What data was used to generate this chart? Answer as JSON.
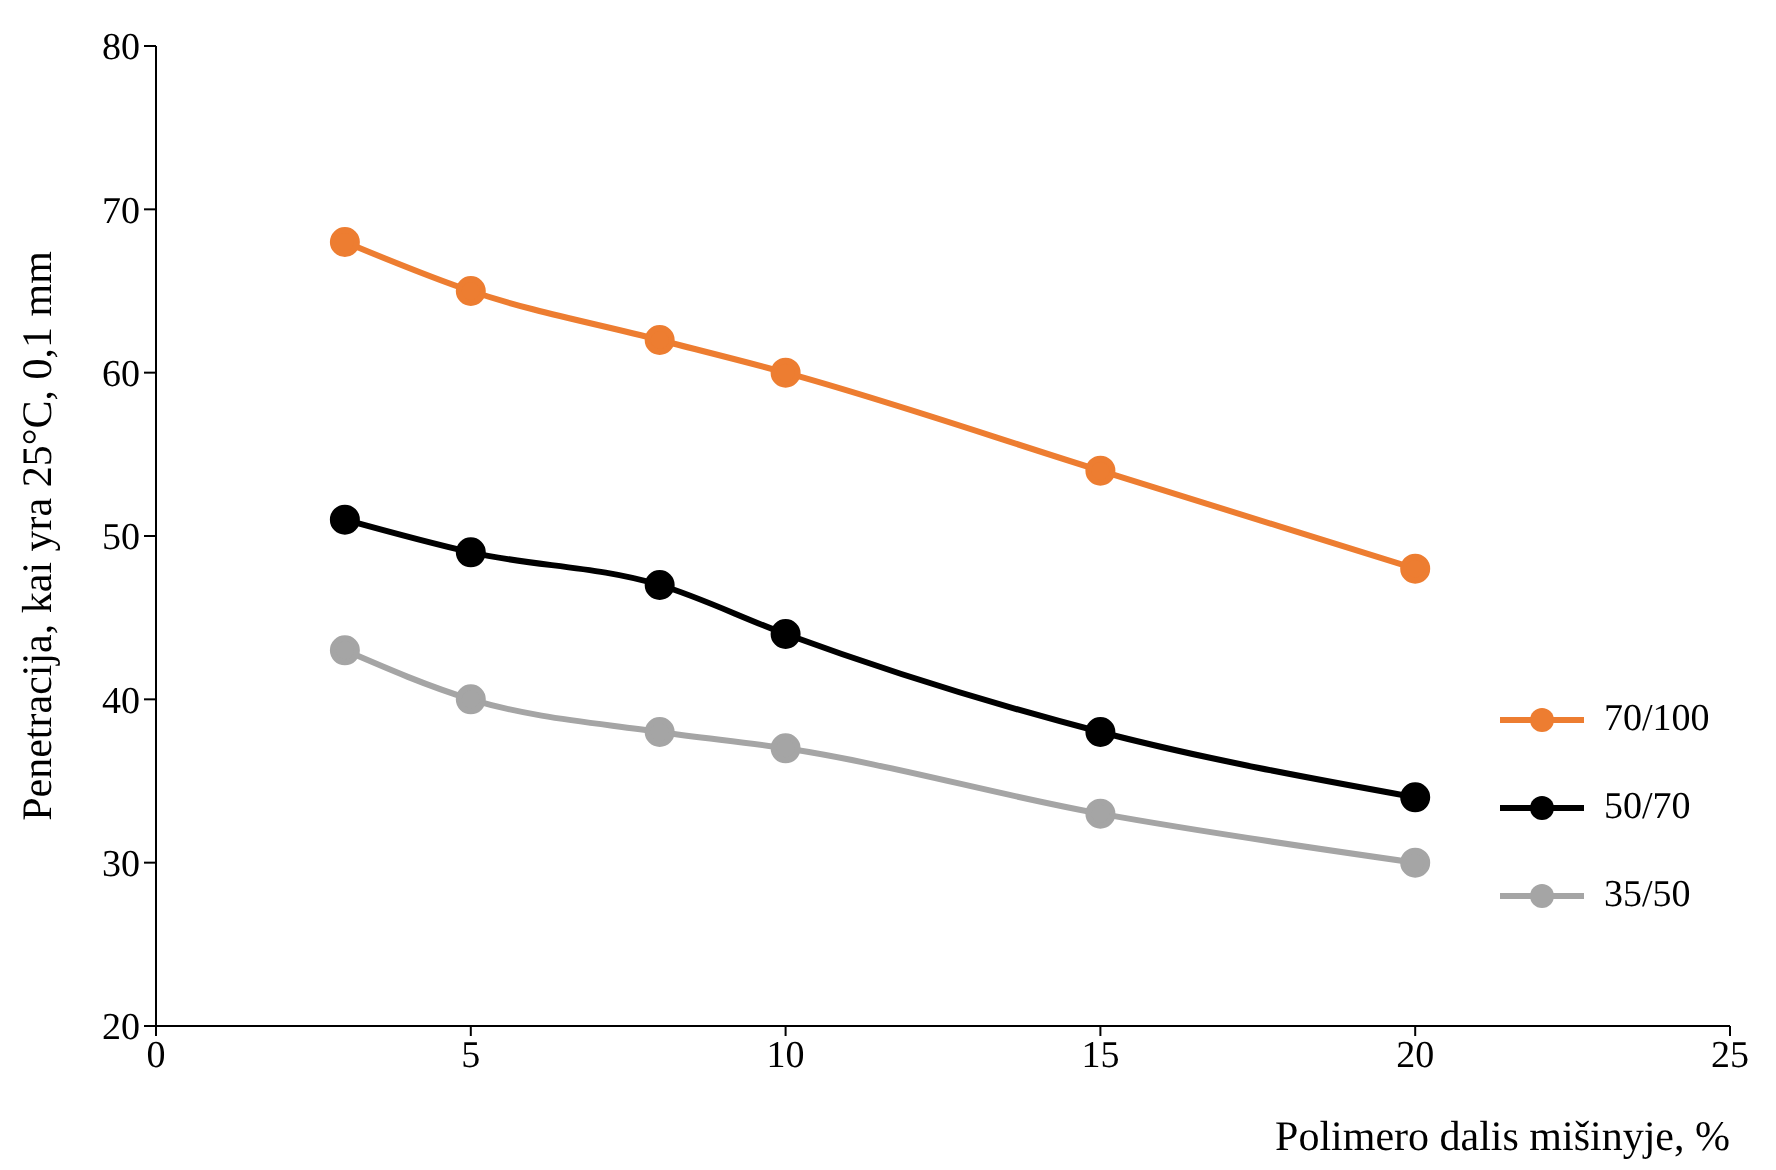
{
  "chart_data": {
    "type": "line",
    "xlabel": "Polimero dalis mišinyje, %",
    "ylabel": "Penetracija, kai yra 25°C, 0,1 mm",
    "x": [
      3,
      5,
      8,
      10,
      15,
      20
    ],
    "series": [
      {
        "name": "70/100",
        "color": "#ed7d31",
        "values": [
          68,
          65,
          62,
          60,
          54,
          48
        ]
      },
      {
        "name": "50/70",
        "color": "#000000",
        "values": [
          51,
          49,
          47,
          44,
          38,
          34
        ]
      },
      {
        "name": "35/50",
        "color": "#a5a5a5",
        "values": [
          43,
          40,
          38,
          37,
          33,
          30
        ]
      }
    ],
    "xlim": [
      0,
      25
    ],
    "xticks": [
      0,
      5,
      10,
      15,
      20,
      25
    ],
    "ylim": [
      20,
      80
    ],
    "yticks": [
      20,
      30,
      40,
      50,
      60,
      70,
      80
    ],
    "grid": false,
    "legend": "right",
    "marker": "circle",
    "line_style": "solid"
  }
}
